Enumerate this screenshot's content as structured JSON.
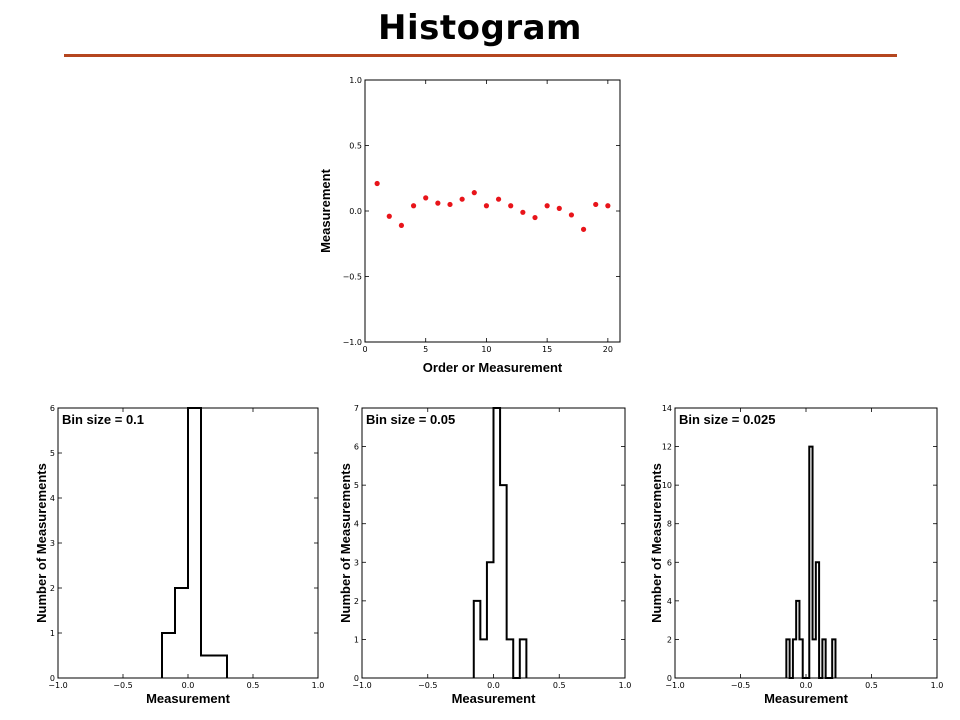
{
  "title": "Histogram",
  "accent_color": "#b5461f",
  "chart_data": [
    {
      "type": "scatter",
      "xlabel": "Order or Measurement",
      "ylabel": "Measurement",
      "xlim": [
        0,
        21
      ],
      "ylim": [
        -1.0,
        1.0
      ],
      "xticks": [
        "0",
        "5",
        "10",
        "15",
        "20"
      ],
      "yticks": [
        "−1.0",
        "−0.5",
        "0.0",
        "0.5",
        "1.0"
      ],
      "marker_color": "#e8141a",
      "x": [
        1,
        2,
        3,
        4,
        5,
        6,
        7,
        8,
        9,
        10,
        11,
        12,
        13,
        14,
        15,
        16,
        17,
        18,
        19,
        20
      ],
      "y": [
        0.21,
        -0.04,
        -0.11,
        0.04,
        0.1,
        0.06,
        0.05,
        0.09,
        0.14,
        0.04,
        0.09,
        0.04,
        -0.01,
        -0.05,
        0.04,
        0.02,
        -0.03,
        -0.14,
        0.05,
        0.04
      ]
    },
    {
      "type": "bar",
      "annotation": "Bin size = 0.1",
      "xlabel": "Measurement",
      "ylabel": "Number of Measurements",
      "xlim": [
        -1.0,
        1.0
      ],
      "ylim": [
        0,
        6
      ],
      "xticks": [
        "−1.0",
        "−0.5",
        "0.0",
        "0.5",
        "1.0"
      ],
      "yticks": [
        "0",
        "1",
        "2",
        "3",
        "4",
        "5",
        "6"
      ],
      "bin_edges": [
        -0.2,
        -0.1,
        0.0,
        0.1,
        0.2,
        0.3
      ],
      "counts": [
        1,
        2,
        6,
        0.5,
        0.5
      ]
    },
    {
      "type": "bar",
      "annotation": "Bin size = 0.05",
      "xlabel": "Measurement",
      "ylabel": "Number of Measurements",
      "xlim": [
        -1.0,
        1.0
      ],
      "ylim": [
        0,
        7
      ],
      "xticks": [
        "−1.0",
        "−0.5",
        "0.0",
        "0.5",
        "1.0"
      ],
      "yticks": [
        "0",
        "1",
        "2",
        "3",
        "4",
        "5",
        "6",
        "7"
      ],
      "bin_edges": [
        -0.15,
        -0.1,
        -0.05,
        0.0,
        0.05,
        0.1,
        0.15,
        0.2,
        0.25
      ],
      "counts": [
        2,
        1,
        3,
        7,
        5,
        1,
        0,
        1
      ]
    },
    {
      "type": "bar",
      "annotation": "Bin size = 0.025",
      "xlabel": "Measurement",
      "ylabel": "Number of Measurements",
      "xlim": [
        -1.0,
        1.0
      ],
      "ylim": [
        0,
        14
      ],
      "xticks": [
        "−1.0",
        "−0.5",
        "0.0",
        "0.5",
        "1.0"
      ],
      "yticks": [
        "0",
        "2",
        "4",
        "6",
        "8",
        "10",
        "12",
        "14"
      ],
      "bin_edges": [
        -0.15,
        -0.125,
        -0.1,
        -0.075,
        -0.05,
        -0.025,
        0.0,
        0.025,
        0.05,
        0.075,
        0.1,
        0.125,
        0.15,
        0.175,
        0.2,
        0.225
      ],
      "counts": [
        2,
        0,
        2,
        4,
        2,
        0,
        0,
        12,
        2,
        6,
        0,
        2,
        0,
        0,
        2
      ]
    }
  ]
}
